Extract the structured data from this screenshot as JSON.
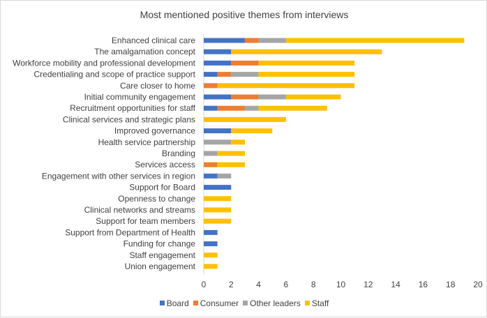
{
  "chart_data": {
    "type": "bar",
    "orientation": "horizontal",
    "stacked": true,
    "title": "Most mentioned positive themes from interviews",
    "categories": [
      "Enhanced clinical care",
      "The amalgamation concept",
      "Workforce mobility and professional development",
      "Credentialing and scope of practice support",
      "Care closer to home",
      "Initial community engagement",
      "Recruitment opportunities for staff",
      "Clinical services and strategic plans",
      "Improved  governance",
      "Health service partnership",
      "Branding",
      "Services access",
      "Engagement with other services in region",
      "Support for Board",
      "Openness to change",
      "Clinical networks and streams",
      "Support for team members",
      "Support from Department of Health",
      "Funding for change",
      "Staff engagement",
      "Union engagement"
    ],
    "series": [
      {
        "name": "Board",
        "color": "#4472c4",
        "values": [
          3,
          2,
          2,
          1,
          0,
          2,
          1,
          0,
          2,
          0,
          0,
          0,
          1,
          2,
          0,
          0,
          0,
          1,
          1,
          0,
          0
        ]
      },
      {
        "name": "Consumer",
        "color": "#ed7d31",
        "values": [
          1,
          0,
          2,
          1,
          1,
          2,
          2,
          0,
          0,
          0,
          0,
          1,
          0,
          0,
          0,
          0,
          0,
          0,
          0,
          0,
          0
        ]
      },
      {
        "name": "Other leaders",
        "color": "#a5a5a5",
        "values": [
          2,
          0,
          0,
          2,
          0,
          2,
          1,
          0,
          0,
          2,
          1,
          0,
          1,
          0,
          0,
          0,
          0,
          0,
          0,
          0,
          0
        ]
      },
      {
        "name": "Staff",
        "color": "#ffc000",
        "values": [
          13,
          11,
          7,
          7,
          10,
          4,
          5,
          6,
          3,
          1,
          2,
          2,
          0,
          0,
          2,
          2,
          2,
          0,
          0,
          1,
          1
        ]
      }
    ],
    "xlim": [
      0,
      20
    ],
    "xticks": [
      "0",
      "2",
      "4",
      "6",
      "8",
      "10",
      "12",
      "14",
      "16",
      "18",
      "20"
    ],
    "grid": false,
    "legend": "bottom"
  }
}
